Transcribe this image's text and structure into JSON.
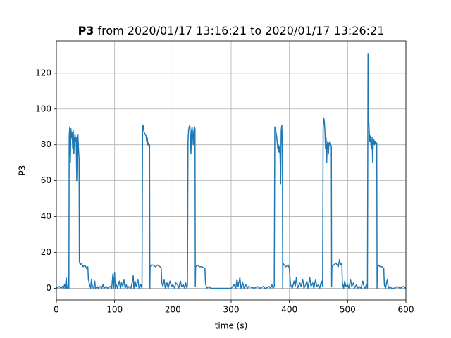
{
  "chart_data": {
    "type": "line",
    "title": {
      "bold": "P3",
      "text": "from 2020/01/17 13:16:21 to 2020/01/17 13:26:21"
    },
    "xlabel": "time (s)",
    "ylabel": "P3",
    "xlim": [
      0,
      600
    ],
    "ylim": [
      -6.5,
      138
    ],
    "xticks": [
      0,
      100,
      200,
      300,
      400,
      500,
      600
    ],
    "yticks": [
      0,
      20,
      40,
      60,
      80,
      100,
      120
    ],
    "grid": true,
    "x": [
      0,
      5,
      8,
      10,
      12,
      14,
      15,
      17,
      18,
      20,
      21,
      21.5,
      22,
      23,
      24,
      25,
      26,
      27,
      28,
      29,
      30,
      31,
      32,
      33,
      34,
      35,
      36,
      37,
      38,
      39,
      39.5,
      41,
      43,
      46,
      49,
      52,
      54,
      55,
      57,
      59,
      60,
      62,
      64,
      66,
      67,
      70,
      72,
      75,
      78,
      80,
      82,
      85,
      88,
      92,
      95,
      97,
      98,
      100,
      101,
      103,
      105,
      108,
      110,
      112,
      114,
      116,
      118,
      120,
      122,
      125,
      128,
      130,
      132,
      133,
      135,
      137,
      140,
      142,
      145,
      147,
      148,
      149,
      150,
      152,
      154,
      155,
      156,
      157,
      158,
      159,
      160,
      160.5,
      161,
      163,
      166,
      170,
      174,
      178,
      180,
      181,
      183,
      185,
      187,
      190,
      192,
      195,
      198,
      200,
      203,
      205,
      208,
      210,
      213,
      215,
      218,
      220,
      222,
      224,
      225,
      226,
      227,
      228,
      229,
      230,
      231,
      232,
      233,
      234,
      235,
      236,
      237,
      238,
      238.5,
      239,
      242,
      246,
      250,
      255,
      256,
      258,
      262,
      265,
      270,
      280,
      290,
      300,
      305,
      308,
      310,
      312,
      315,
      317,
      320,
      322,
      325,
      328,
      330,
      340,
      345,
      350,
      355,
      358,
      360,
      365,
      368,
      370,
      372,
      374,
      375,
      376,
      377,
      378,
      379,
      380,
      381,
      382,
      383,
      384,
      385,
      386,
      387,
      388,
      388.5,
      389,
      391,
      394,
      398,
      400,
      402,
      405,
      408,
      410,
      412,
      414,
      418,
      420,
      423,
      425,
      428,
      430,
      432,
      435,
      437,
      440,
      442,
      445,
      447,
      450,
      452,
      455,
      457,
      458,
      459,
      460,
      461,
      462,
      463,
      464,
      465,
      466,
      467,
      468,
      469,
      470,
      471,
      472,
      472.5,
      473,
      476,
      480,
      484,
      486,
      488,
      490,
      491,
      493,
      495,
      497,
      500,
      502,
      505,
      507,
      510,
      512,
      515,
      518,
      520,
      523,
      526,
      528,
      530,
      532,
      534,
      535,
      535.5,
      536,
      537,
      538,
      539,
      540,
      541,
      542,
      543,
      544,
      545,
      546,
      547,
      548,
      549,
      550,
      550.5,
      551,
      553,
      556,
      560,
      562,
      563,
      565,
      568,
      570,
      573,
      575,
      580,
      585,
      590,
      595,
      600
    ],
    "series": [
      {
        "name": "P3",
        "color": "#1f77b4",
        "values": [
          0,
          1,
          0,
          1,
          0,
          2,
          0,
          6,
          0,
          1,
          7,
          0,
          85,
          90,
          70,
          89,
          84,
          87,
          78,
          88,
          75,
          83,
          86,
          82,
          84,
          60,
          85,
          86,
          78,
          72,
          15,
          13,
          14,
          12,
          13,
          11,
          12,
          5,
          2,
          0,
          5,
          1,
          0,
          4,
          0,
          1,
          0,
          1,
          0,
          2,
          0,
          1,
          0,
          1,
          0,
          8,
          0,
          9,
          0,
          2,
          0,
          4,
          0,
          3,
          1,
          5,
          0,
          2,
          0,
          1,
          0,
          3,
          7,
          0,
          4,
          1,
          5,
          0,
          2,
          0,
          90,
          91,
          88,
          86,
          85,
          82,
          84,
          80,
          81,
          79,
          80,
          0,
          12,
          13,
          13,
          12,
          13,
          12,
          11,
          3,
          1,
          5,
          0,
          3,
          0,
          4,
          1,
          2,
          0,
          3,
          2,
          0,
          4,
          1,
          2,
          0,
          3,
          0,
          2,
          82,
          88,
          90,
          91,
          85,
          75,
          88,
          90,
          86,
          80,
          88,
          90,
          89,
          1,
          12,
          13,
          12,
          12,
          11,
          3,
          0,
          1,
          0,
          0,
          0,
          0,
          0,
          2,
          0,
          5,
          1,
          6,
          0,
          3,
          0,
          2,
          0,
          1,
          0,
          1,
          0,
          1,
          0,
          0,
          1,
          0,
          2,
          0,
          1,
          90,
          88,
          87,
          85,
          82,
          78,
          80,
          76,
          79,
          74,
          58,
          88,
          91,
          78,
          0,
          14,
          13,
          12,
          13,
          11,
          2,
          0,
          4,
          1,
          6,
          0,
          3,
          1,
          5,
          0,
          2,
          4,
          0,
          6,
          1,
          3,
          0,
          5,
          1,
          2,
          0,
          4,
          1,
          90,
          95,
          93,
          88,
          78,
          84,
          70,
          80,
          82,
          75,
          81,
          80,
          82,
          80,
          79,
          1,
          12,
          13,
          14,
          12,
          16,
          13,
          14,
          3,
          0,
          4,
          1,
          2,
          0,
          5,
          1,
          3,
          0,
          2,
          0,
          1,
          0,
          4,
          1,
          0,
          2,
          0,
          131,
          90,
          95,
          88,
          82,
          85,
          80,
          78,
          84,
          70,
          82,
          83,
          80,
          82,
          81,
          80,
          81,
          0,
          11,
          13,
          12,
          12,
          11,
          2,
          0,
          5,
          0,
          1,
          0,
          0,
          1,
          0,
          1,
          0
        ]
      }
    ]
  }
}
